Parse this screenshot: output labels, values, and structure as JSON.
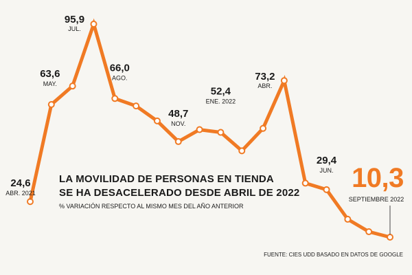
{
  "chart_data": {
    "type": "line",
    "title_lines": [
      "LA MOVILIDAD DE PERSONAS EN TIENDA",
      "SE HA DESACELERADO DESDE ABRIL DE 2022"
    ],
    "subtitle": "% VARIACIÓN RESPECTO AL MISMO MES DEL AÑO ANTERIOR",
    "source": "FUENTE: CIES UDD BASADO EN DATOS DE GOOGLE",
    "ylim": [
      0,
      100
    ],
    "grid": false,
    "line_color": "#f07a24",
    "point_fill": "#ffffff",
    "highlight_color": "#f07a24",
    "points": [
      {
        "value": 24.6,
        "label_value": "24,6",
        "label": "ABR. 2021"
      },
      {
        "value": 63.6,
        "label_value": "63,6",
        "label": "MAY."
      },
      {
        "value": 71.0
      },
      {
        "value": 95.9,
        "label_value": "95,9",
        "label": "JUL."
      },
      {
        "value": 66.0,
        "label_value": "66,0",
        "label": "AGO."
      },
      {
        "value": 63.0
      },
      {
        "value": 57.0
      },
      {
        "value": 48.7,
        "label_value": "48,7",
        "label": "NOV."
      },
      {
        "value": 53.5
      },
      {
        "value": 52.4,
        "label_value": "52,4",
        "label": "ENE. 2022"
      },
      {
        "value": 45.0
      },
      {
        "value": 54.0
      },
      {
        "value": 73.2,
        "label_value": "73,2",
        "label": "ABR."
      },
      {
        "value": 32.0
      },
      {
        "value": 29.4,
        "label_value": "29,4",
        "label": "JUN."
      },
      {
        "value": 17.5
      },
      {
        "value": 12.5
      },
      {
        "value": 10.3,
        "label_value": "10,3",
        "label": "SEPTIEMBRE 2022",
        "highlight": true
      }
    ]
  }
}
